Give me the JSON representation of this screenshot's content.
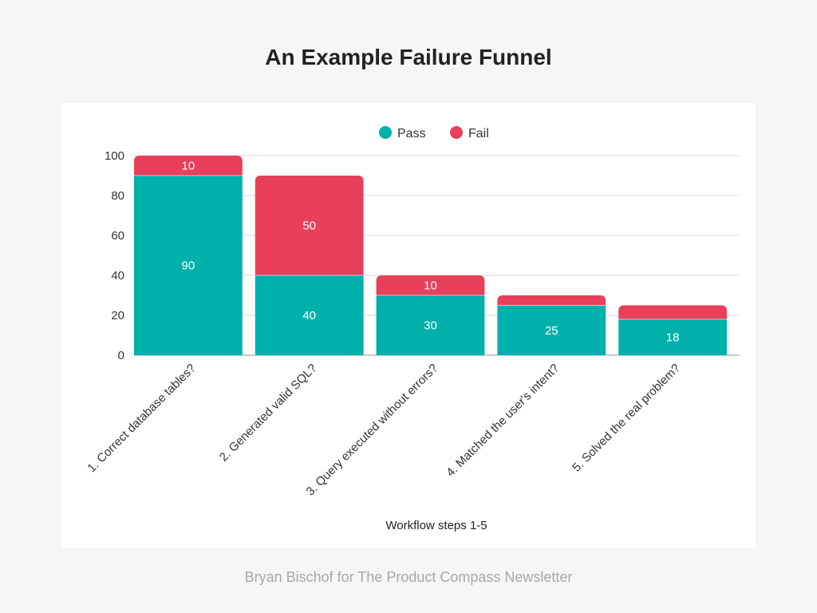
{
  "page": {
    "title": "An Example Failure Funnel",
    "footer": "Bryan Bischof for The Product Compass Newsletter"
  },
  "chart_data": {
    "type": "bar",
    "stacked": true,
    "title": "An Example Failure Funnel",
    "xlabel": "Workflow steps 1-5",
    "ylabel": "",
    "ylim": [
      0,
      100
    ],
    "yticks": [
      0,
      20,
      40,
      60,
      80,
      100
    ],
    "grid": true,
    "legend_position": "top-center",
    "categories": [
      "1. Correct database tables?",
      "2. Generated valid SQL?",
      "3. Query executed without errors?",
      "4. Matched the user's intent?",
      "5. Solved the real problem?"
    ],
    "series": [
      {
        "name": "Pass",
        "color": "#00b0aa",
        "values": [
          90,
          40,
          30,
          25,
          18
        ],
        "labels": [
          "90",
          "40",
          "30",
          "25",
          "18"
        ]
      },
      {
        "name": "Fail",
        "color": "#e8405a",
        "values": [
          10,
          50,
          10,
          5,
          7
        ],
        "labels": [
          "10",
          "50",
          "10",
          "",
          ""
        ]
      }
    ]
  }
}
